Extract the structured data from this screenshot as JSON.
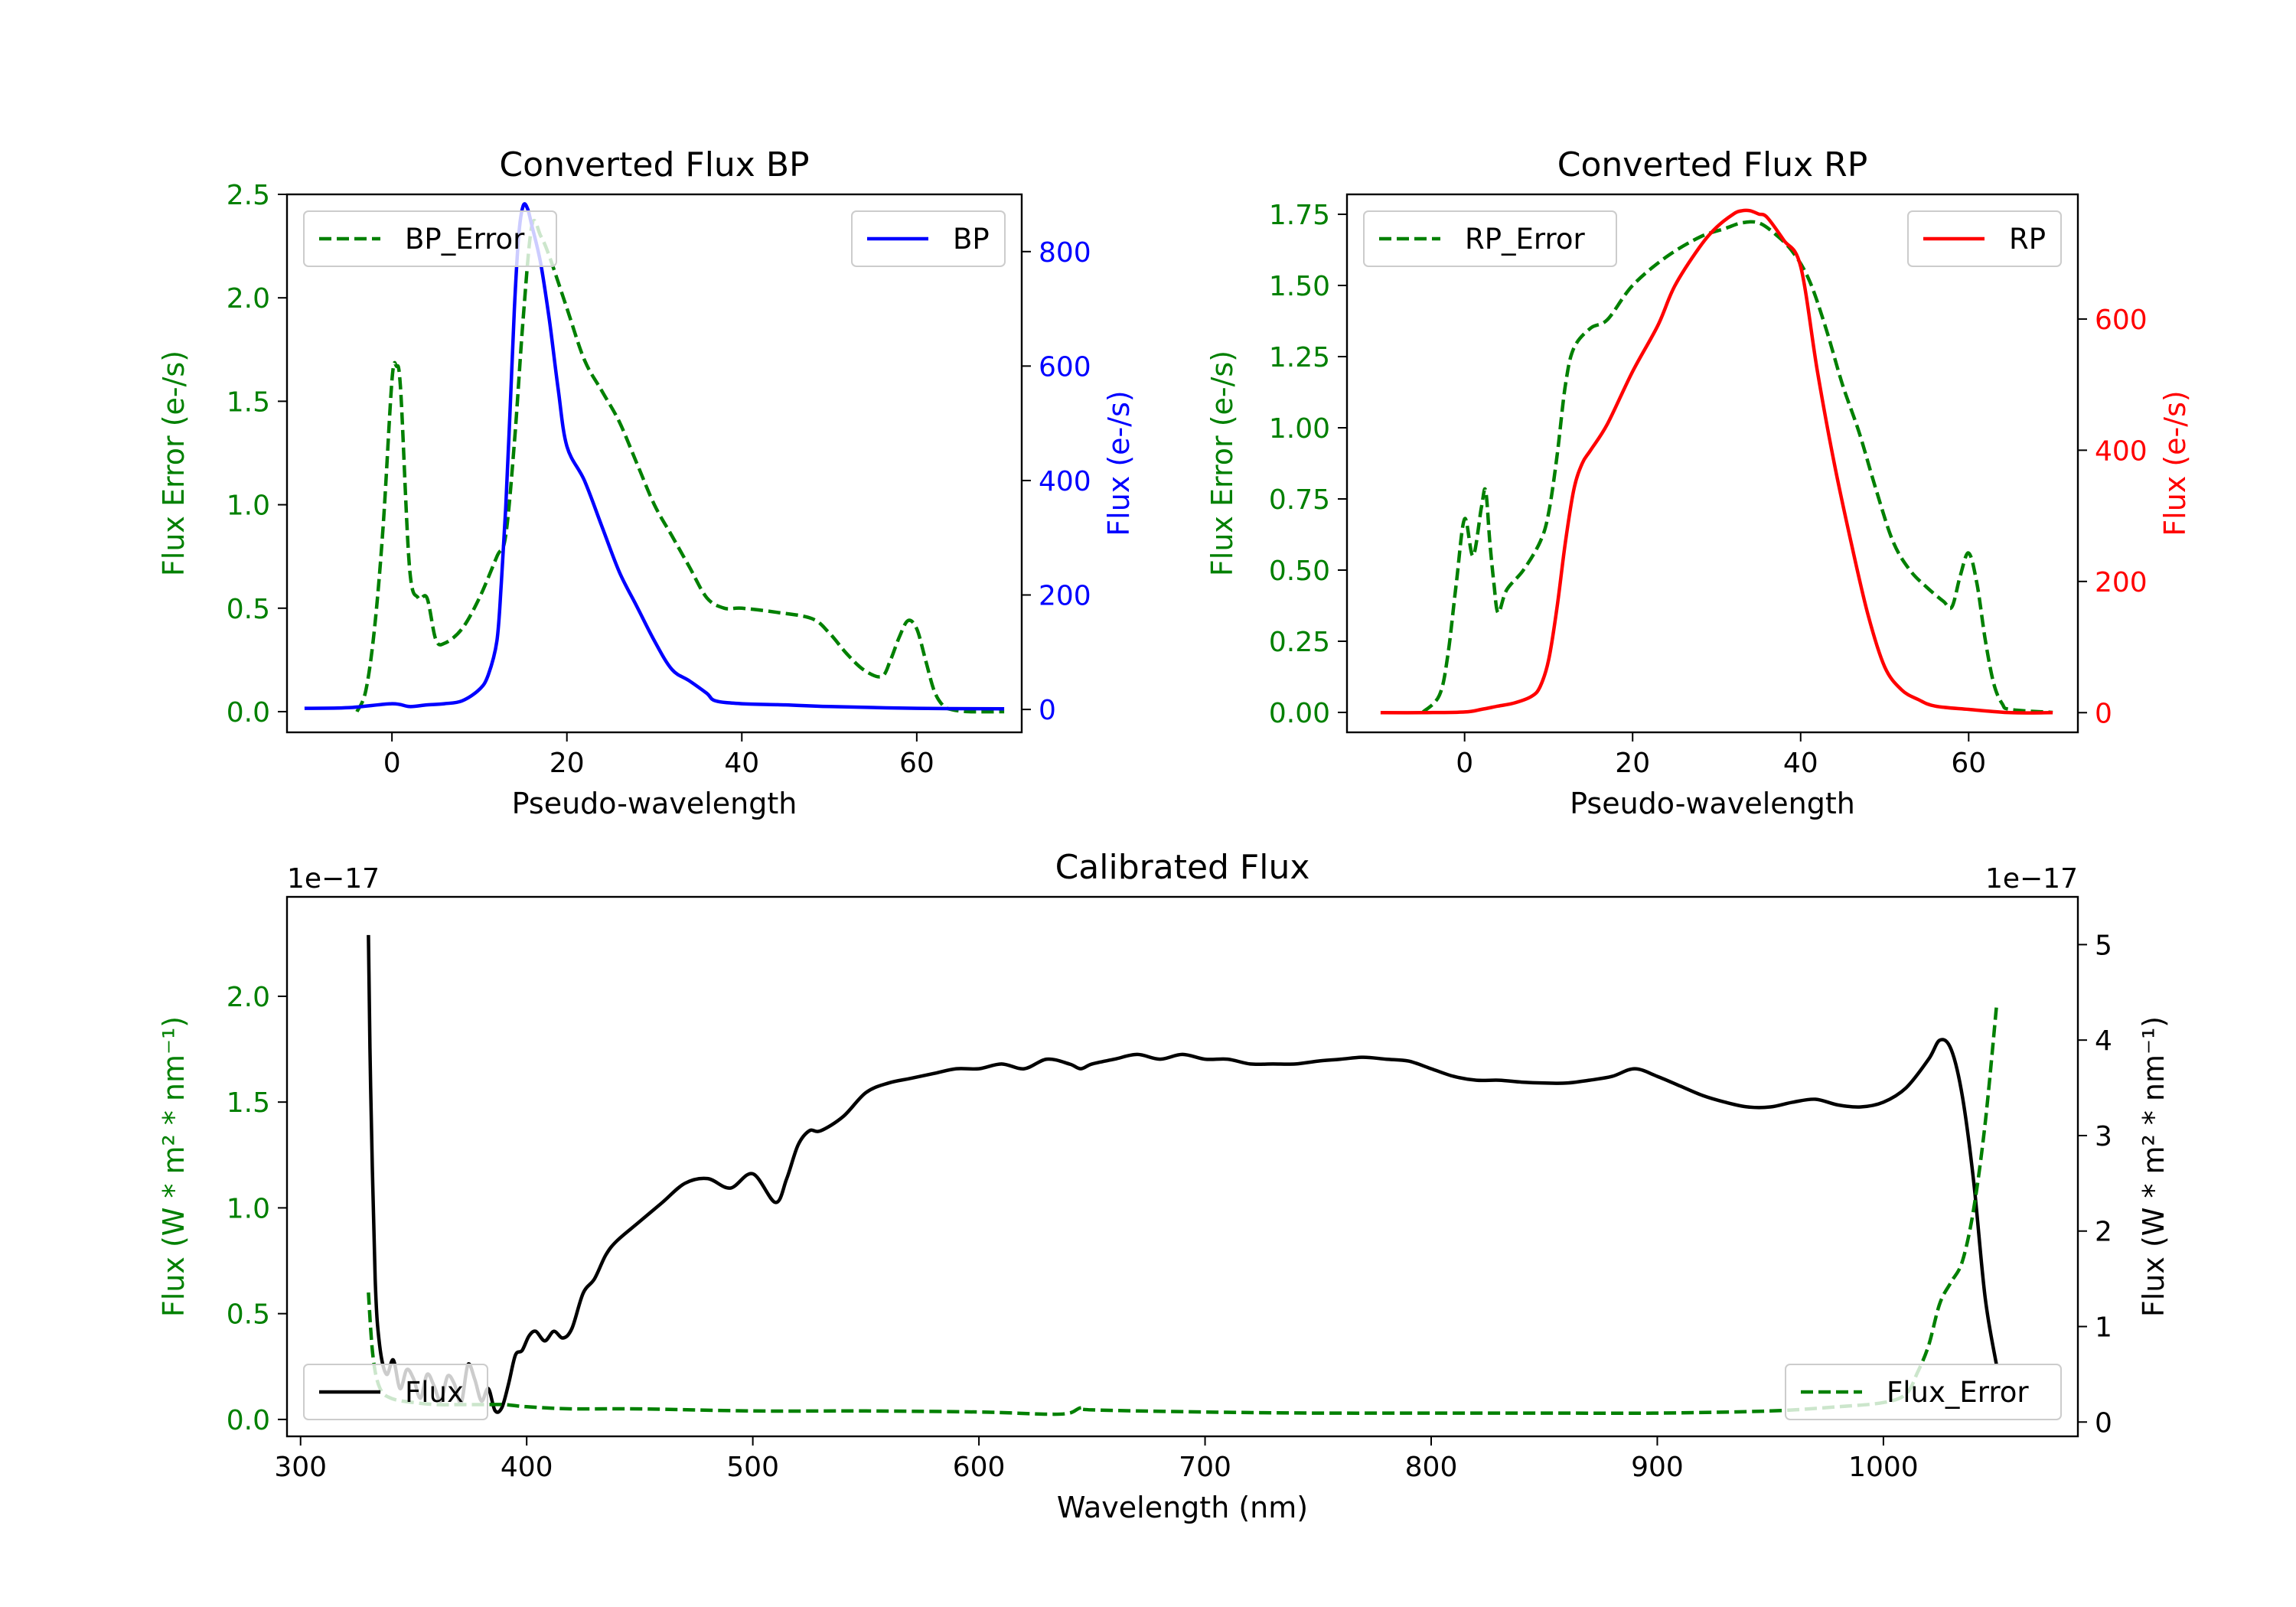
{
  "colors": {
    "green": "#008000",
    "blue": "#0000ff",
    "red": "#ff0000",
    "black": "#000000"
  },
  "chart_data": [
    {
      "id": "bp",
      "type": "line",
      "title": "Converted Flux BP",
      "xlabel": "Pseudo-wavelength",
      "ylabel_left": "Flux Error (e-/s)",
      "ylabel_right": "Flux (e-/s)",
      "xlim": [
        -12,
        72
      ],
      "ylim_left": [
        -0.1,
        2.5
      ],
      "ylim_right": [
        -40,
        900
      ],
      "xticks": [
        0,
        20,
        40,
        60
      ],
      "yticks_left": [
        0.0,
        0.5,
        1.0,
        1.5,
        2.0,
        2.5
      ],
      "ytick_labels_left": [
        "0.0",
        "0.5",
        "1.0",
        "1.5",
        "2.0",
        "2.5"
      ],
      "yticks_right": [
        0,
        200,
        400,
        600,
        800
      ],
      "ytick_labels_right": [
        "0",
        "200",
        "400",
        "600",
        "800"
      ],
      "right_axis_color": "#0000ff",
      "series": [
        {
          "name": "BP_Error",
          "axis": "left",
          "style": "dashed",
          "color": "#008000",
          "legend_position": "upper-left",
          "x": [
            -4,
            -3,
            -2,
            -1,
            0,
            0.5,
            1,
            2,
            3,
            4,
            5,
            6,
            8,
            10,
            12,
            13,
            14,
            15,
            16,
            17,
            18,
            20,
            22,
            24,
            26,
            28,
            30,
            32,
            34,
            36,
            38,
            40,
            44,
            48,
            50,
            52,
            54,
            56,
            57,
            58,
            59,
            60,
            61,
            62,
            63,
            64,
            66,
            70
          ],
          "y": [
            0.0,
            0.1,
            0.4,
            0.9,
            1.6,
            1.67,
            1.55,
            0.7,
            0.55,
            0.55,
            0.35,
            0.33,
            0.4,
            0.55,
            0.75,
            0.85,
            1.3,
            1.9,
            2.35,
            2.3,
            2.2,
            1.95,
            1.7,
            1.55,
            1.4,
            1.2,
            1.0,
            0.85,
            0.7,
            0.55,
            0.5,
            0.5,
            0.48,
            0.45,
            0.38,
            0.28,
            0.2,
            0.17,
            0.25,
            0.36,
            0.44,
            0.4,
            0.25,
            0.1,
            0.03,
            0.01,
            0.0,
            0.0
          ]
        },
        {
          "name": "BP",
          "axis": "right",
          "style": "solid",
          "color": "#0000ff",
          "legend_position": "upper-right",
          "x": [
            -10,
            -5,
            0,
            2,
            4,
            6,
            8,
            10,
            11,
            12,
            12.5,
            13,
            13.5,
            14,
            14.5,
            15,
            15.5,
            16,
            17,
            18,
            19,
            20,
            22,
            24,
            26,
            28,
            30,
            32,
            34,
            36,
            37,
            40,
            45,
            50,
            60,
            70
          ],
          "y": [
            2,
            3,
            10,
            5,
            8,
            10,
            15,
            35,
            60,
            120,
            220,
            350,
            520,
            700,
            830,
            880,
            875,
            845,
            780,
            680,
            560,
            460,
            400,
            320,
            240,
            180,
            120,
            70,
            50,
            28,
            15,
            10,
            8,
            5,
            2,
            1
          ]
        }
      ]
    },
    {
      "id": "rp",
      "type": "line",
      "title": "Converted Flux RP",
      "xlabel": "Pseudo-wavelength",
      "ylabel_left": "Flux Error (e-/s)",
      "ylabel_right": "Flux (e-/s)",
      "xlim": [
        -14,
        73
      ],
      "ylim_left": [
        -0.07,
        1.82
      ],
      "ylim_right": [
        -30,
        790
      ],
      "xticks": [
        0,
        20,
        40,
        60
      ],
      "yticks_left": [
        0.0,
        0.25,
        0.5,
        0.75,
        1.0,
        1.25,
        1.5,
        1.75
      ],
      "ytick_labels_left": [
        "0.00",
        "0.25",
        "0.50",
        "0.75",
        "1.00",
        "1.25",
        "1.50",
        "1.75"
      ],
      "yticks_right": [
        0,
        200,
        400,
        600
      ],
      "ytick_labels_right": [
        "0",
        "200",
        "400",
        "600"
      ],
      "right_axis_color": "#ff0000",
      "series": [
        {
          "name": "RP_Error",
          "axis": "left",
          "style": "dashed",
          "color": "#008000",
          "legend_position": "upper-left",
          "x": [
            -5,
            -3,
            -2,
            -1,
            0,
            1,
            2,
            2.5,
            3,
            3.5,
            4,
            5,
            7,
            9,
            10,
            11,
            12,
            13,
            15,
            17,
            20,
            24,
            28,
            31,
            33,
            35,
            37,
            39,
            41,
            43,
            45,
            47,
            49,
            51,
            53,
            55,
            57,
            58,
            59,
            60,
            61,
            62,
            63,
            64,
            65,
            70
          ],
          "y": [
            0.0,
            0.06,
            0.2,
            0.45,
            0.68,
            0.55,
            0.72,
            0.78,
            0.6,
            0.45,
            0.35,
            0.43,
            0.5,
            0.6,
            0.7,
            0.9,
            1.15,
            1.28,
            1.35,
            1.38,
            1.5,
            1.6,
            1.67,
            1.7,
            1.72,
            1.72,
            1.68,
            1.62,
            1.52,
            1.35,
            1.15,
            0.98,
            0.78,
            0.6,
            0.5,
            0.44,
            0.39,
            0.37,
            0.48,
            0.56,
            0.45,
            0.25,
            0.1,
            0.03,
            0.01,
            0.0
          ]
        },
        {
          "name": "RP",
          "axis": "right",
          "style": "solid",
          "color": "#ff0000",
          "legend_position": "upper-right",
          "x": [
            -10,
            -5,
            0,
            2,
            4,
            6,
            8,
            9,
            10,
            11,
            12,
            13,
            14,
            15,
            17,
            20,
            23,
            25,
            28,
            30,
            32,
            33,
            34,
            35,
            36,
            38,
            40,
            42,
            44,
            46,
            48,
            50,
            52,
            54,
            56,
            60,
            65,
            70
          ],
          "y": [
            0,
            0,
            1,
            5,
            10,
            15,
            25,
            40,
            80,
            160,
            260,
            340,
            380,
            400,
            440,
            520,
            590,
            650,
            710,
            740,
            760,
            765,
            765,
            760,
            755,
            720,
            680,
            520,
            380,
            260,
            150,
            70,
            35,
            20,
            10,
            5,
            0,
            0
          ]
        }
      ]
    },
    {
      "id": "calibrated",
      "type": "line",
      "title": "Calibrated Flux",
      "xlabel": "Wavelength (nm)",
      "ylabel_left": "Flux (W * m² * nm⁻¹)",
      "ylabel_right": "Flux (W * m² * nm⁻¹)",
      "offset_left": "1e−17",
      "offset_right": "1e−17",
      "xlim": [
        294,
        1086
      ],
      "ylim_left": [
        -0.08,
        2.47
      ],
      "ylim_right": [
        -0.15,
        5.5
      ],
      "xticks": [
        300,
        400,
        500,
        600,
        700,
        800,
        900,
        1000
      ],
      "yticks_left": [
        0.0,
        0.5,
        1.0,
        1.5,
        2.0
      ],
      "ytick_labels_left": [
        "0.0",
        "0.5",
        "1.0",
        "1.5",
        "2.0"
      ],
      "yticks_right": [
        0,
        1,
        2,
        3,
        4,
        5
      ],
      "ytick_labels_right": [
        "0",
        "1",
        "2",
        "3",
        "4",
        "5"
      ],
      "right_axis_color": "#000000",
      "series": [
        {
          "name": "Flux",
          "axis": "right",
          "style": "solid",
          "color": "#000000",
          "legend_position": "lower-left",
          "x": [
            330,
            331,
            333,
            335,
            338,
            341,
            344,
            347,
            350,
            353,
            356,
            359,
            362,
            365,
            368,
            371,
            374,
            377,
            380,
            383,
            386,
            389,
            392,
            395,
            398,
            401,
            404,
            408,
            412,
            416,
            420,
            425,
            430,
            435,
            440,
            450,
            460,
            470,
            480,
            490,
            500,
            510,
            515,
            520,
            525,
            530,
            540,
            550,
            560,
            570,
            580,
            590,
            600,
            610,
            620,
            630,
            640,
            645,
            650,
            660,
            670,
            680,
            690,
            700,
            710,
            720,
            730,
            740,
            750,
            760,
            770,
            780,
            790,
            800,
            810,
            820,
            830,
            840,
            850,
            860,
            870,
            880,
            890,
            900,
            910,
            920,
            930,
            940,
            950,
            960,
            970,
            980,
            990,
            1000,
            1010,
            1020,
            1025,
            1030,
            1035,
            1040,
            1045,
            1050
          ],
          "y": [
            5.1,
            3.5,
            1.5,
            0.8,
            0.5,
            0.65,
            0.35,
            0.55,
            0.45,
            0.25,
            0.5,
            0.38,
            0.22,
            0.48,
            0.4,
            0.2,
            0.6,
            0.45,
            0.22,
            0.35,
            0.12,
            0.15,
            0.4,
            0.7,
            0.75,
            0.9,
            0.95,
            0.85,
            0.95,
            0.88,
            0.98,
            1.35,
            1.5,
            1.75,
            1.9,
            2.1,
            2.3,
            2.5,
            2.55,
            2.45,
            2.6,
            2.3,
            2.55,
            2.9,
            3.05,
            3.05,
            3.2,
            3.45,
            3.55,
            3.6,
            3.65,
            3.7,
            3.7,
            3.75,
            3.7,
            3.8,
            3.75,
            3.7,
            3.75,
            3.8,
            3.85,
            3.8,
            3.85,
            3.8,
            3.8,
            3.75,
            3.75,
            3.75,
            3.78,
            3.8,
            3.82,
            3.8,
            3.78,
            3.7,
            3.62,
            3.58,
            3.58,
            3.56,
            3.55,
            3.55,
            3.58,
            3.62,
            3.7,
            3.62,
            3.52,
            3.42,
            3.35,
            3.3,
            3.3,
            3.35,
            3.38,
            3.32,
            3.3,
            3.35,
            3.5,
            3.8,
            4.0,
            3.9,
            3.4,
            2.5,
            1.3,
            0.6
          ]
        },
        {
          "name": "Flux_Error",
          "axis": "left",
          "style": "dashed",
          "color": "#008000",
          "legend_position": "lower-right",
          "x": [
            330,
            332,
            335,
            340,
            350,
            360,
            370,
            380,
            390,
            400,
            420,
            450,
            500,
            550,
            600,
            630,
            640,
            645,
            650,
            700,
            750,
            800,
            850,
            900,
            950,
            980,
            1000,
            1010,
            1015,
            1020,
            1025,
            1030,
            1035,
            1040,
            1045,
            1050
          ],
          "y": [
            0.6,
            0.3,
            0.15,
            0.1,
            0.08,
            0.07,
            0.07,
            0.07,
            0.07,
            0.06,
            0.05,
            0.05,
            0.04,
            0.04,
            0.035,
            0.025,
            0.03,
            0.055,
            0.045,
            0.035,
            0.03,
            0.03,
            0.03,
            0.03,
            0.04,
            0.06,
            0.08,
            0.12,
            0.22,
            0.35,
            0.55,
            0.65,
            0.75,
            1.0,
            1.4,
            1.95
          ]
        }
      ]
    }
  ]
}
